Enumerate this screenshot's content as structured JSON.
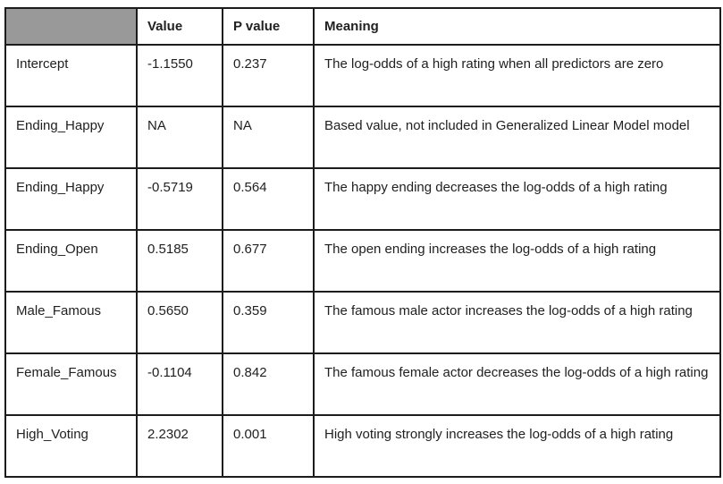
{
  "table": {
    "header": [
      "",
      "Value",
      "P value",
      "Meaning"
    ],
    "rows": [
      {
        "name": "Intercept",
        "value": "-1.1550",
        "p_value": "0.237",
        "meaning": "The log-odds of a high rating when all predictors are zero"
      },
      {
        "name": "Ending_Happy",
        "value": "NA",
        "p_value": "NA",
        "meaning": "Based value, not included in Generalized Linear Model model"
      },
      {
        "name": "Ending_Happy",
        "value": "-0.5719",
        "p_value": "0.564",
        "meaning": "The happy ending decreases the log-odds of a high rating"
      },
      {
        "name": "Ending_Open",
        "value": "0.5185",
        "p_value": "0.677",
        "meaning": "The open ending increases the log-odds of a high rating"
      },
      {
        "name": "Male_Famous",
        "value": "0.5650",
        "p_value": "0.359",
        "meaning": "The famous male actor increases the log-odds of a high rating"
      },
      {
        "name": "Female_Famous",
        "value": "-0.1104",
        "p_value": "0.842",
        "meaning": "The famous female actor decreases the log-odds of a high rating"
      },
      {
        "name": "High_Voting",
        "value": "2.2302",
        "p_value": "0.001",
        "meaning": "High voting strongly increases the log-odds of a high rating"
      }
    ],
    "colors": {
      "corner_cell_bg": "#999999",
      "border": "#1c1c1c",
      "cell_bg": "#ffffff",
      "text": "#202122"
    }
  }
}
